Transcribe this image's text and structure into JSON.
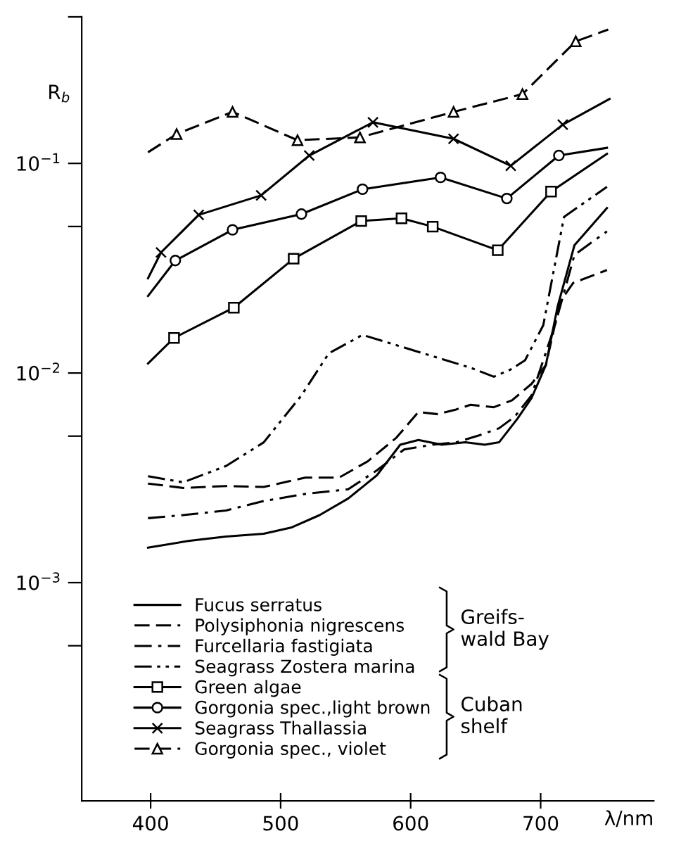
{
  "chart_data": {
    "type": "line",
    "xlabel": "λ/nm",
    "ylabel": "R$_{b}$",
    "log": "y",
    "xlim": [
      347,
      787
    ],
    "ylim": [
      9.1e-05,
      0.5
    ],
    "xticks": [
      400,
      500,
      600,
      700
    ],
    "yticks": [
      {
        "value": 0.5,
        "label": null
      },
      {
        "value": 0.1,
        "label": "10$^{−1}$"
      },
      {
        "value": 0.05,
        "label": null
      },
      {
        "value": 0.01,
        "label": "10$^{−2}$"
      },
      {
        "value": 0.005,
        "label": null
      },
      {
        "value": 0.001,
        "label": "10$^{−3}$"
      },
      {
        "value": 0.0005,
        "label": null
      }
    ],
    "grid": false,
    "legend": "bottom left",
    "series": [
      {
        "name": "Fucus serratus",
        "color": "#000000",
        "line_style": "solid",
        "marker": "none",
        "x": [
          398,
          429,
          458,
          487,
          508,
          530,
          552,
          574,
          592,
          606,
          624,
          642,
          657,
          668,
          682,
          693,
          704,
          713,
          726,
          751
        ],
        "values": [
          0.00147,
          0.00158,
          0.00166,
          0.00171,
          0.00183,
          0.0021,
          0.00252,
          0.00325,
          0.00455,
          0.00479,
          0.00455,
          0.00467,
          0.00455,
          0.00467,
          0.00604,
          0.0076,
          0.0109,
          0.0207,
          0.0407,
          0.0612
        ]
      },
      {
        "name": "Polysiphonia nigrescens",
        "color": "#000000",
        "line_style": "dashed",
        "marker": "none",
        "x": [
          398,
          425,
          458,
          487,
          519,
          545,
          567,
          589,
          606,
          621,
          635,
          646,
          664,
          678,
          693,
          704,
          715,
          725,
          751
        ],
        "values": [
          0.00297,
          0.00283,
          0.00289,
          0.00286,
          0.00317,
          0.00317,
          0.00379,
          0.00491,
          0.00652,
          0.00636,
          0.0067,
          0.00705,
          0.00687,
          0.00741,
          0.00888,
          0.0109,
          0.0219,
          0.0269,
          0.031
        ]
      },
      {
        "name": "Furcellaria fastigiata",
        "color": "#000000",
        "line_style": "dashdot",
        "marker": "none",
        "x": [
          398,
          425,
          458,
          487,
          519,
          552,
          574,
          595,
          617,
          635,
          653,
          668,
          680,
          693,
          711,
          726,
          751
        ],
        "values": [
          0.00203,
          0.0021,
          0.00221,
          0.00245,
          0.00265,
          0.00279,
          0.00343,
          0.00432,
          0.00455,
          0.00467,
          0.00505,
          0.00545,
          0.00619,
          0.00782,
          0.0169,
          0.0366,
          0.0474
        ]
      },
      {
        "name": "Seagrass Zostera marina",
        "color": "#000000",
        "line_style": "dashdotdot",
        "marker": "none",
        "x": [
          398,
          425,
          458,
          487,
          516,
          537,
          563,
          646,
          664,
          677,
          688,
          702,
          718,
          751
        ],
        "values": [
          0.00322,
          0.00301,
          0.0036,
          0.00467,
          0.00782,
          0.0124,
          0.0152,
          0.0106,
          0.0096,
          0.0104,
          0.0115,
          0.0169,
          0.0556,
          0.0773
        ]
      },
      {
        "name": "Green algae",
        "color": "#000000",
        "line_style": "solid",
        "marker": "square",
        "x": [
          398,
          418,
          464,
          510,
          562,
          593,
          617,
          667,
          708,
          751
        ],
        "values": [
          0.0111,
          0.0147,
          0.0205,
          0.0351,
          0.0531,
          0.0547,
          0.0499,
          0.0385,
          0.0734,
          0.111
        ]
      },
      {
        "name": "Gorgonia spec.,light brown",
        "color": "#000000",
        "line_style": "solid",
        "marker": "circle",
        "x": [
          398,
          419,
          463,
          516,
          563,
          623,
          674,
          714,
          751
        ],
        "values": [
          0.0233,
          0.0344,
          0.0482,
          0.0573,
          0.0753,
          0.0857,
          0.068,
          0.109,
          0.1186
        ]
      },
      {
        "name": "Seagrass Thallassia",
        "color": "#000000",
        "line_style": "solid",
        "marker": "cross",
        "x": [
          398,
          408,
          437,
          485,
          522,
          571,
          633,
          677,
          717,
          753
        ],
        "values": [
          0.0283,
          0.0376,
          0.0568,
          0.0704,
          0.109,
          0.157,
          0.131,
          0.0974,
          0.153,
          0.203
        ]
      },
      {
        "name": "Gorgonia spec., violet",
        "color": "#000000",
        "line_style": "dashed",
        "marker": "triangle",
        "x": [
          398,
          420,
          463,
          513,
          561,
          633,
          686,
          727,
          752
        ],
        "values": [
          0.113,
          0.138,
          0.176,
          0.129,
          0.133,
          0.176,
          0.214,
          0.382,
          0.435
        ]
      }
    ],
    "annotations": [
      "Greifs-\nwald Bay",
      "Cuban\nshelf"
    ]
  }
}
